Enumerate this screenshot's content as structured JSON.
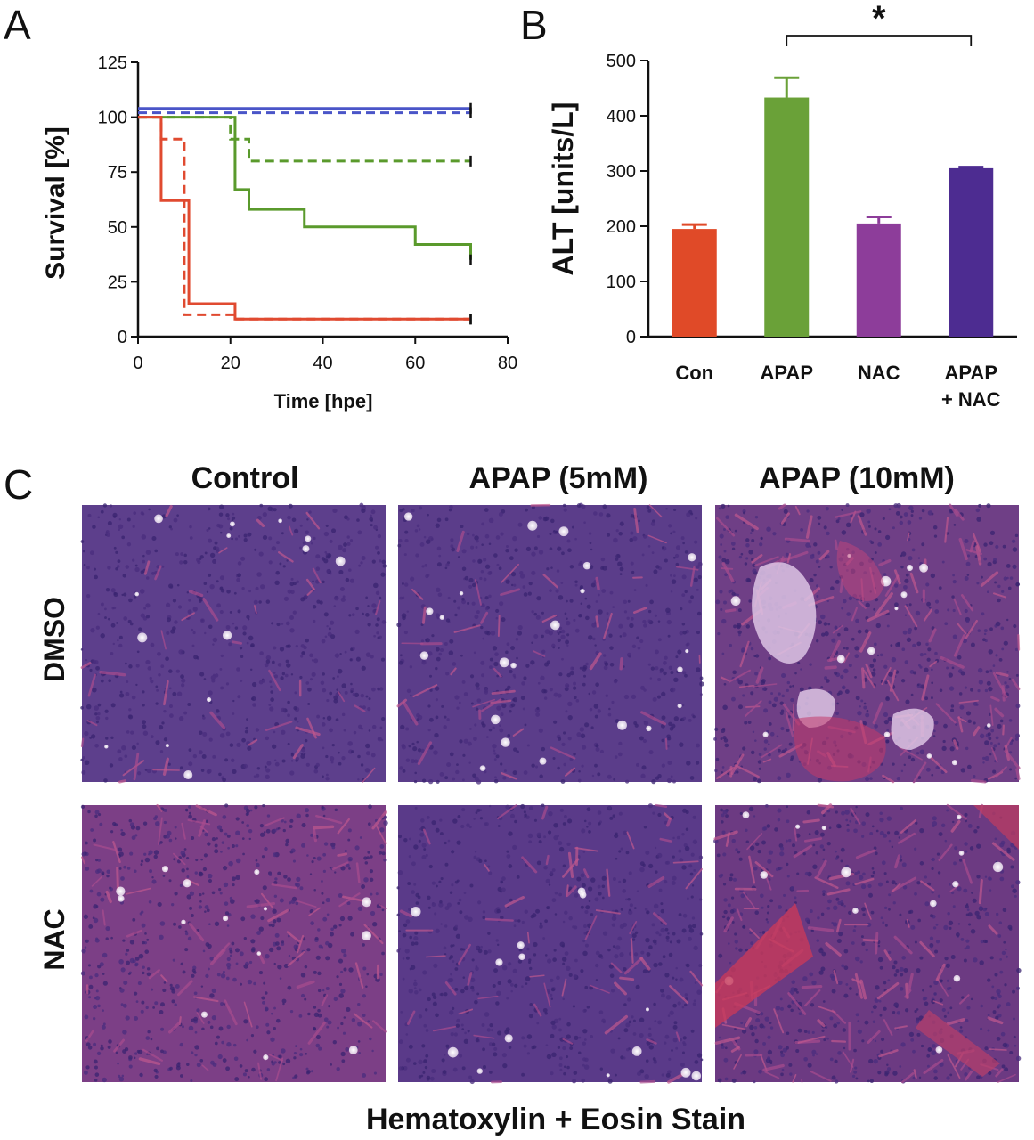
{
  "panels": {
    "a": "A",
    "b": "B",
    "c": "C"
  },
  "chart_data": [
    {
      "type": "line",
      "panel": "A",
      "xlabel": "Time [hpe]",
      "ylabel": "Survival [%]",
      "xlim": [
        0,
        80
      ],
      "ylim": [
        0,
        125
      ],
      "xticks": [
        "0",
        "20",
        "40",
        "60",
        "80"
      ],
      "yticks": [
        "0",
        "25",
        "50",
        "75",
        "100",
        "125"
      ],
      "grid": false,
      "step": true,
      "series": [
        {
          "color": "#4a55c8",
          "dash": false,
          "x": [
            0,
            72
          ],
          "y": [
            104,
            104
          ]
        },
        {
          "color": "#4a55c8",
          "dash": true,
          "x": [
            0,
            72
          ],
          "y": [
            102,
            102
          ]
        },
        {
          "color": "#5a9a2c",
          "dash": false,
          "x": [
            0,
            21,
            24,
            36,
            60,
            72
          ],
          "y": [
            100,
            67,
            58,
            50,
            42,
            35
          ]
        },
        {
          "color": "#5a9a2c",
          "dash": true,
          "x": [
            0,
            20,
            24,
            72
          ],
          "y": [
            100,
            90,
            80,
            80
          ]
        },
        {
          "color": "#e04a30",
          "dash": false,
          "x": [
            0,
            5,
            11,
            21,
            72
          ],
          "y": [
            100,
            62,
            15,
            8,
            8
          ]
        },
        {
          "color": "#e04a30",
          "dash": true,
          "x": [
            0,
            5,
            10,
            21,
            72
          ],
          "y": [
            100,
            90,
            10,
            8,
            8
          ]
        }
      ]
    },
    {
      "type": "bar",
      "panel": "B",
      "ylabel": "ALT [units/L]",
      "ylim": [
        0,
        500
      ],
      "yticks": [
        "0",
        "100",
        "200",
        "300",
        "400",
        "500"
      ],
      "categories": [
        "Con",
        "APAP",
        "NAC",
        "APAP + NAC"
      ],
      "category_lines": [
        [
          "Con"
        ],
        [
          "APAP"
        ],
        [
          "NAC"
        ],
        [
          "APAP",
          "+ NAC"
        ]
      ],
      "values": [
        195,
        433,
        205,
        305
      ],
      "errors": [
        8,
        36,
        12,
        2
      ],
      "colors": [
        "#e04a28",
        "#6aa138",
        "#8d3d9a",
        "#4d2c91"
      ],
      "significance": {
        "label": "*",
        "from": 1,
        "to": 3
      }
    }
  ],
  "histology": {
    "columns": [
      "Control",
      "APAP (5mM)",
      "APAP (10mM)"
    ],
    "rows": [
      "DMSO",
      "NAC"
    ],
    "caption": "Hematoxylin + Eosin Stain"
  }
}
